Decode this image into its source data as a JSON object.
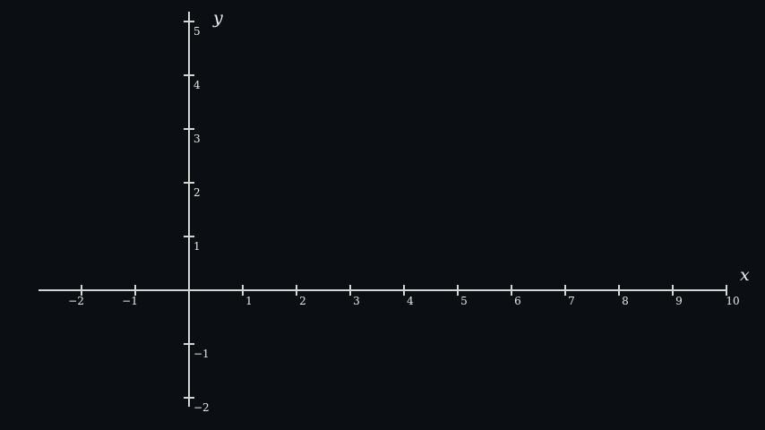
{
  "chart_data": {
    "type": "scatter",
    "xlabel": "x",
    "ylabel": "y",
    "xlim": [
      -2.8,
      10
    ],
    "ylim": [
      -2.2,
      5.2
    ],
    "x_ticks": [
      -2,
      -1,
      1,
      2,
      3,
      4,
      5,
      6,
      7,
      8,
      9,
      10
    ],
    "x_tick_labels": [
      "−2",
      "−1",
      "1",
      "2",
      "3",
      "4",
      "5",
      "6",
      "7",
      "8",
      "9",
      "10"
    ],
    "y_ticks": [
      -2,
      -1,
      1,
      2,
      3,
      4,
      5
    ],
    "y_tick_labels": [
      "−2",
      "−1",
      "1",
      "2",
      "3",
      "4",
      "5"
    ],
    "series": [],
    "grid": false,
    "legend": "none"
  },
  "colors": {
    "background": "#0b0f13",
    "axis": "#d6d6d6",
    "text": "#e8e8e8"
  }
}
